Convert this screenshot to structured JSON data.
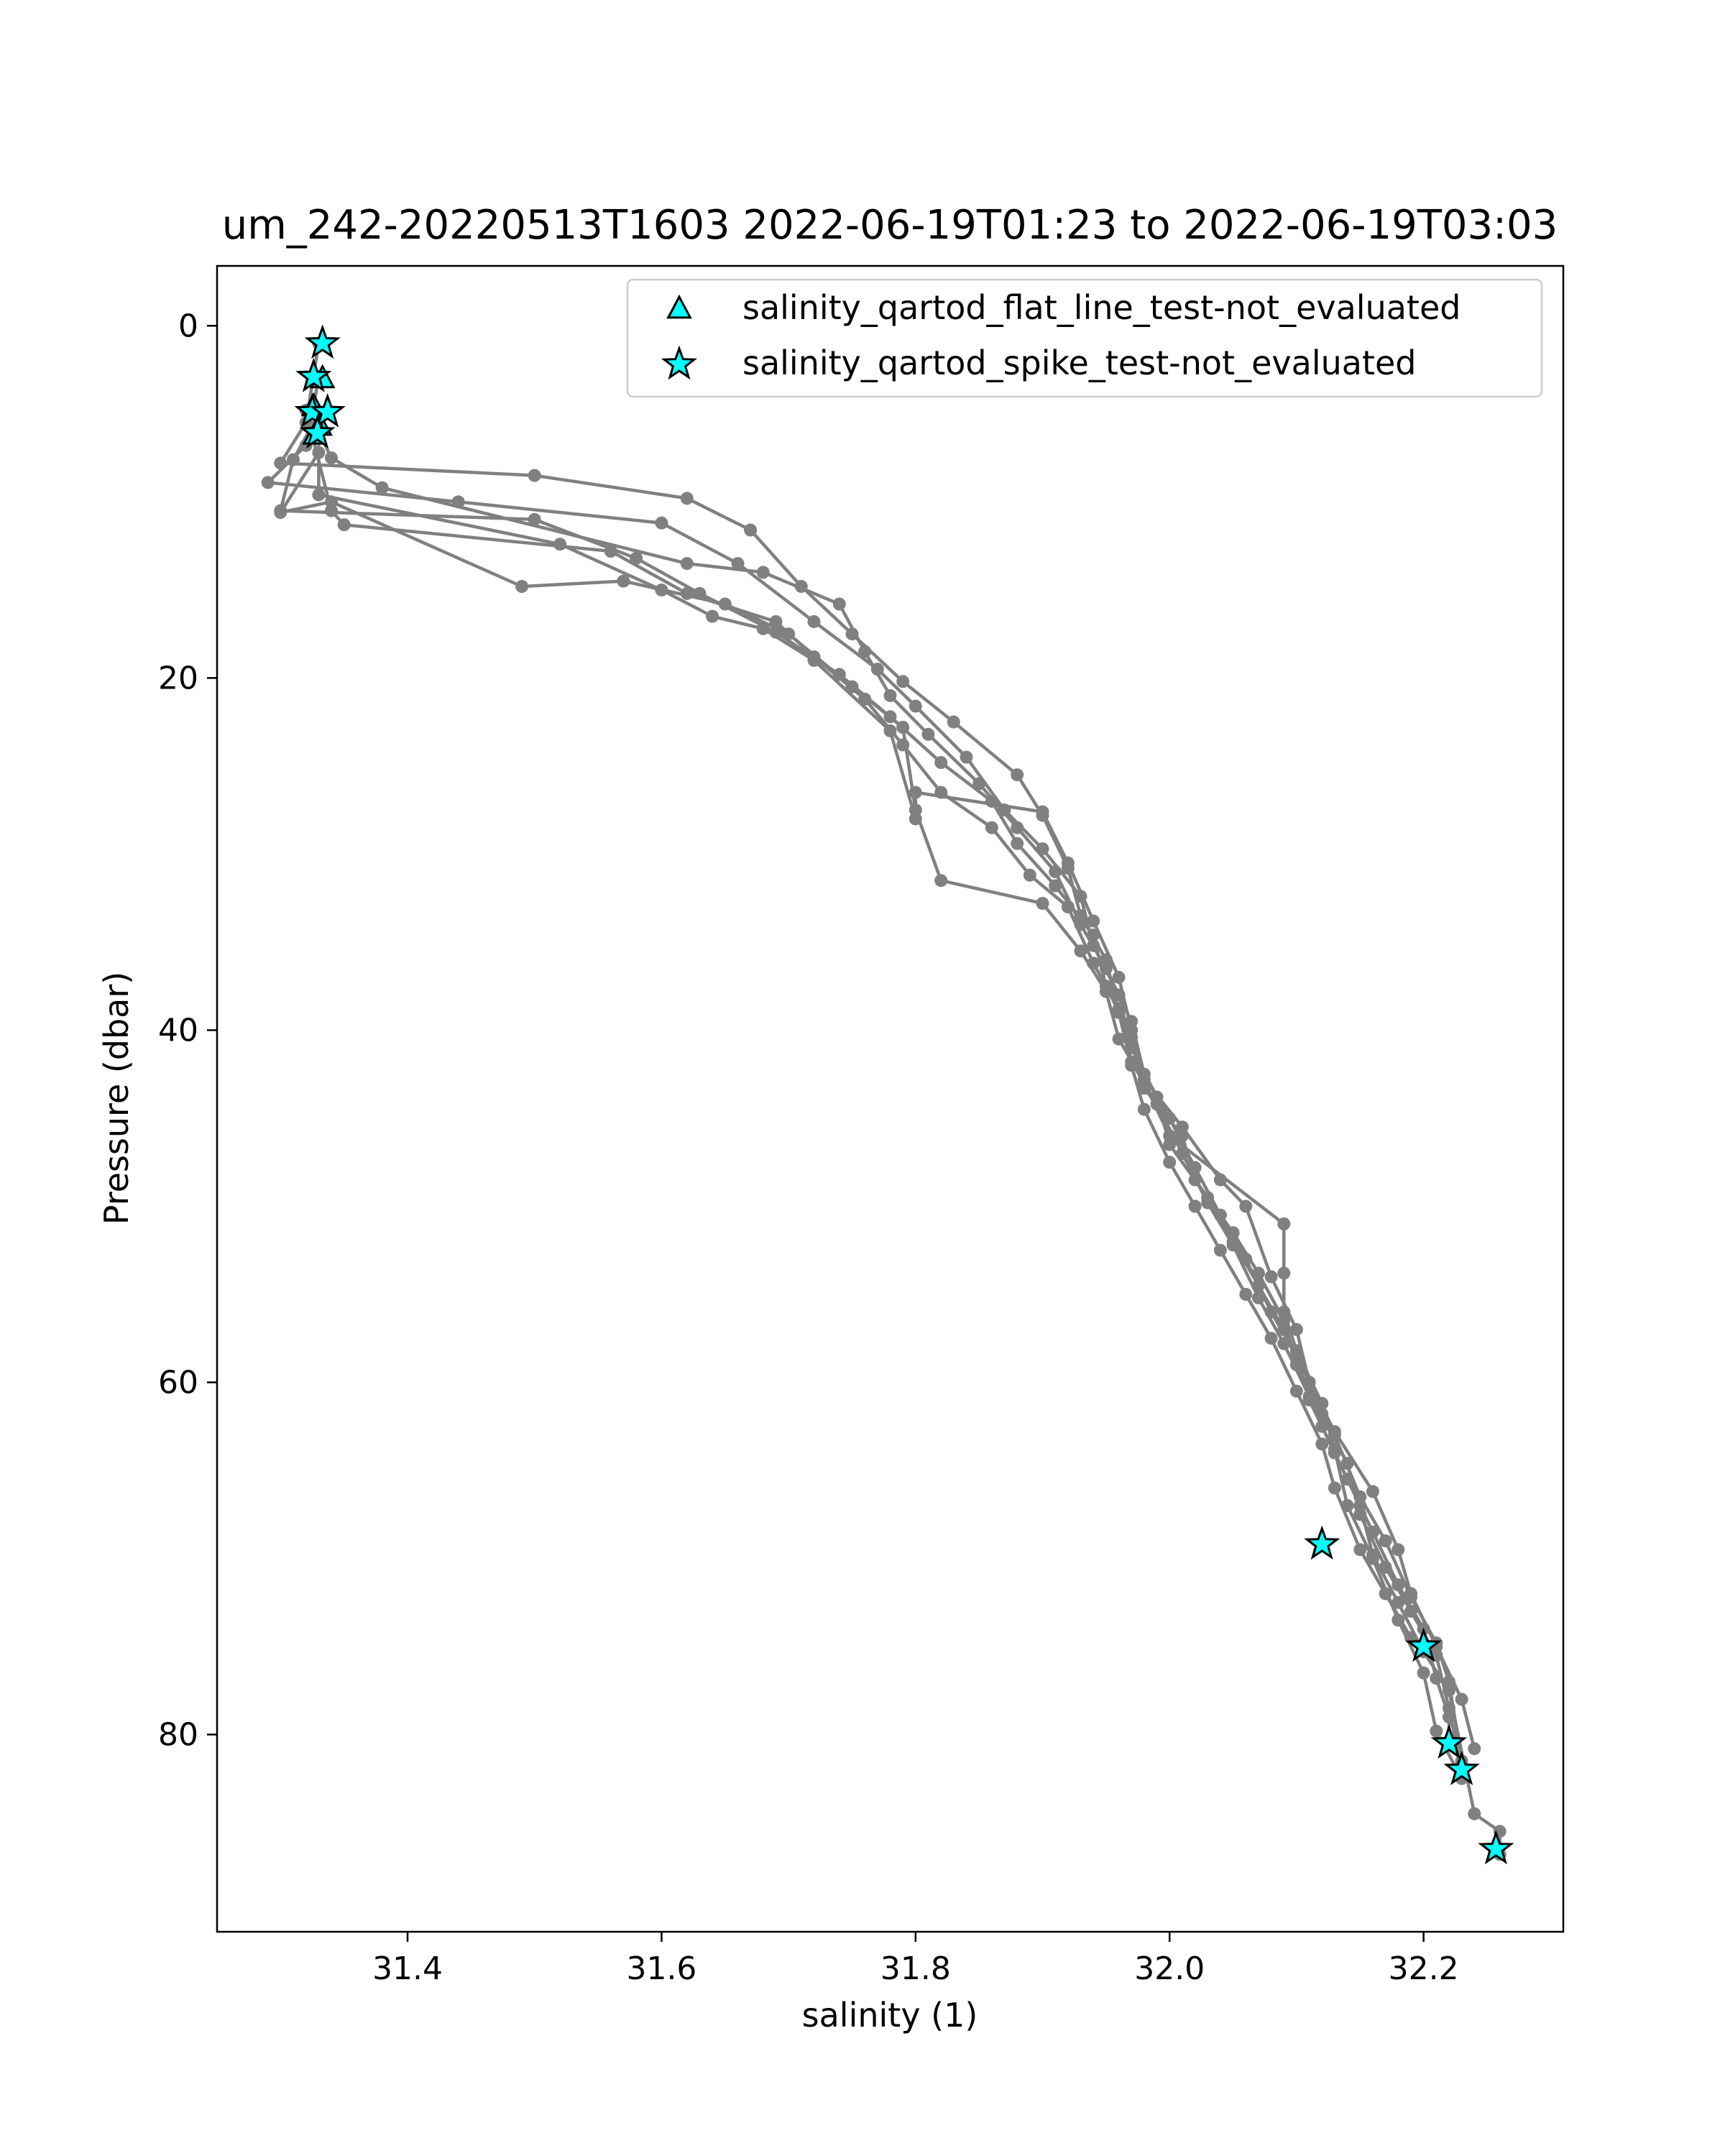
{
  "chart_data": {
    "type": "scatter",
    "title": "um_242-20220513T1603 2022-06-19T01:23 to 2022-06-19T03:03",
    "xlabel": "salinity (1)",
    "ylabel": "Pressure (dbar)",
    "xlim": [
      31.25,
      32.31
    ],
    "ylim": [
      91.2,
      -3.4
    ],
    "y_inverted": true,
    "grid": false,
    "legend_position": "top-right",
    "x_ticks": [
      "31.4",
      "31.6",
      "31.8",
      "32.0",
      "32.2"
    ],
    "x_tick_values": [
      31.4,
      31.6,
      31.8,
      32.0,
      32.2
    ],
    "y_ticks": [
      "0",
      "20",
      "40",
      "60",
      "80"
    ],
    "y_tick_values": [
      0,
      20,
      40,
      60,
      80
    ],
    "colors": {
      "profile": "#808080",
      "marker_fill": "#00ffff",
      "marker_edge": "#000000"
    },
    "series": [
      {
        "style": "line-points",
        "color": "#808080",
        "profiles": [
          [
            [
              31.33,
              1.0
            ],
            [
              31.32,
              5.5
            ],
            [
              31.3,
              7.8
            ],
            [
              31.5,
              8.5
            ],
            [
              31.62,
              9.8
            ],
            [
              31.67,
              11.6
            ],
            [
              31.71,
              14.8
            ],
            [
              31.75,
              17.5
            ],
            [
              31.79,
              20.2
            ],
            [
              31.83,
              22.5
            ],
            [
              31.88,
              25.5
            ],
            [
              31.9,
              27.8
            ],
            [
              31.92,
              30.8
            ],
            [
              31.93,
              33.5
            ],
            [
              31.95,
              36.0
            ],
            [
              31.96,
              39.0
            ],
            [
              31.97,
              42.0
            ],
            [
              31.98,
              44.5
            ],
            [
              32.0,
              47.5
            ],
            [
              32.02,
              50.0
            ],
            [
              32.04,
              52.5
            ],
            [
              32.06,
              55.0
            ],
            [
              32.08,
              57.5
            ],
            [
              32.1,
              60.5
            ],
            [
              32.12,
              63.5
            ],
            [
              32.13,
              66.0
            ],
            [
              32.15,
              69.5
            ],
            [
              32.17,
              72.0
            ],
            [
              32.19,
              74.5
            ],
            [
              32.2,
              75.0
            ]
          ],
          [
            [
              31.33,
              3.0
            ],
            [
              31.32,
              6.8
            ],
            [
              31.29,
              8.9
            ],
            [
              31.44,
              10.0
            ],
            [
              31.6,
              11.2
            ],
            [
              31.66,
              13.5
            ],
            [
              31.72,
              16.8
            ],
            [
              31.77,
              19.5
            ],
            [
              31.8,
              21.6
            ],
            [
              31.84,
              24.5
            ],
            [
              31.87,
              27.5
            ],
            [
              31.9,
              29.7
            ],
            [
              31.93,
              32.4
            ],
            [
              31.94,
              35.2
            ],
            [
              31.96,
              38.0
            ],
            [
              31.97,
              41.0
            ],
            [
              31.99,
              43.8
            ],
            [
              32.0,
              46.5
            ],
            [
              32.03,
              49.5
            ],
            [
              32.05,
              52.0
            ],
            [
              32.07,
              54.5
            ],
            [
              32.09,
              57.0
            ],
            [
              32.11,
              60.0
            ],
            [
              32.12,
              62.5
            ],
            [
              32.14,
              65.5
            ],
            [
              32.16,
              68.5
            ],
            [
              32.18,
              71.5
            ],
            [
              32.2,
              74.0
            ],
            [
              32.21,
              76.8
            ],
            [
              32.22,
              79.0
            ],
            [
              32.22,
              80.5
            ]
          ],
          [
            [
              31.33,
              5.0
            ],
            [
              31.31,
              7.6
            ],
            [
              31.3,
              10.5
            ],
            [
              31.5,
              11.0
            ],
            [
              31.58,
              13.2
            ],
            [
              31.63,
              15.2
            ],
            [
              31.69,
              17.4
            ],
            [
              31.74,
              19.8
            ],
            [
              31.78,
              22.2
            ],
            [
              31.82,
              24.8
            ],
            [
              31.86,
              27.0
            ],
            [
              31.88,
              29.4
            ],
            [
              31.91,
              31.8
            ],
            [
              31.94,
              34.6
            ],
            [
              31.95,
              37.5
            ],
            [
              31.97,
              40.4
            ],
            [
              31.98,
              43.3
            ],
            [
              32.01,
              46.0
            ],
            [
              32.02,
              48.5
            ],
            [
              32.05,
              51.5
            ],
            [
              32.07,
              53.8
            ],
            [
              32.09,
              56.5
            ],
            [
              32.1,
              59.0
            ],
            [
              32.12,
              61.8
            ],
            [
              32.14,
              64.6
            ],
            [
              32.15,
              67.5
            ],
            [
              32.17,
              70.5
            ],
            [
              32.19,
              73.0
            ],
            [
              32.21,
              75.5
            ],
            [
              32.22,
              78.5
            ],
            [
              32.23,
              82.0
            ]
          ],
          [
            [
              31.33,
              6.0
            ],
            [
              31.34,
              7.5
            ],
            [
              31.38,
              9.2
            ],
            [
              31.62,
              13.5
            ],
            [
              31.68,
              14.0
            ],
            [
              31.74,
              15.8
            ],
            [
              31.76,
              18.5
            ],
            [
              31.78,
              21.0
            ],
            [
              31.81,
              23.2
            ],
            [
              31.85,
              26.0
            ],
            [
              31.88,
              28.5
            ],
            [
              31.91,
              31.0
            ],
            [
              31.93,
              34.0
            ],
            [
              31.95,
              36.5
            ],
            [
              31.97,
              39.5
            ],
            [
              31.98,
              42.5
            ],
            [
              32.0,
              45.0
            ],
            [
              32.02,
              47.8
            ],
            [
              32.04,
              50.5
            ],
            [
              32.06,
              53.0
            ],
            [
              32.08,
              56.0
            ],
            [
              32.1,
              58.5
            ],
            [
              32.11,
              61.0
            ],
            [
              32.13,
              64.0
            ],
            [
              32.15,
              67.0
            ],
            [
              32.16,
              69.8
            ],
            [
              32.18,
              72.5
            ],
            [
              32.2,
              75.3
            ],
            [
              32.22,
              77.5
            ],
            [
              32.24,
              84.5
            ],
            [
              32.26,
              85.5
            ],
            [
              32.26,
              86.8
            ]
          ],
          [
            [
              31.32,
              4.8
            ],
            [
              31.34,
              10.5
            ],
            [
              31.35,
              11.3
            ],
            [
              31.56,
              12.8
            ],
            [
              31.62,
              15.2
            ],
            [
              31.69,
              16.8
            ],
            [
              31.72,
              18.8
            ],
            [
              31.76,
              21.2
            ],
            [
              31.79,
              23.8
            ],
            [
              31.82,
              26.5
            ],
            [
              31.86,
              28.5
            ],
            [
              31.89,
              31.2
            ],
            [
              31.92,
              33.0
            ],
            [
              31.94,
              36.2
            ],
            [
              31.96,
              38.8
            ],
            [
              31.97,
              41.8
            ],
            [
              31.99,
              44.2
            ],
            [
              32.01,
              47.0
            ],
            [
              32.03,
              49.8
            ],
            [
              32.05,
              52.2
            ],
            [
              32.07,
              55.2
            ],
            [
              32.09,
              57.8
            ],
            [
              32.11,
              60.8
            ],
            [
              32.13,
              63.0
            ],
            [
              32.15,
              66.5
            ],
            [
              32.17,
              69.0
            ],
            [
              32.19,
              72.2
            ],
            [
              32.21,
              74.8
            ],
            [
              32.22,
              77.0
            ],
            [
              32.23,
              81.5
            ]
          ],
          [
            [
              31.33,
              7.2
            ],
            [
              31.3,
              10.6
            ],
            [
              31.34,
              10.0
            ],
            [
              31.49,
              14.8
            ],
            [
              31.57,
              14.5
            ],
            [
              31.65,
              15.8
            ],
            [
              31.7,
              17.5
            ],
            [
              31.75,
              20.5
            ],
            [
              31.79,
              22.8
            ],
            [
              31.8,
              27.5
            ],
            [
              31.82,
              31.5
            ],
            [
              31.9,
              32.8
            ],
            [
              31.93,
              35.5
            ],
            [
              31.95,
              37.8
            ],
            [
              31.96,
              40.5
            ],
            [
              31.98,
              43.0
            ],
            [
              32.0,
              46.0
            ],
            [
              32.09,
              51.0
            ],
            [
              32.09,
              53.8
            ],
            [
              32.09,
              56.0
            ],
            [
              32.1,
              58.2
            ],
            [
              32.12,
              61.2
            ],
            [
              32.13,
              63.8
            ],
            [
              32.14,
              67.0
            ],
            [
              32.16,
              70.0
            ],
            [
              32.18,
              73.5
            ],
            [
              32.2,
              76.5
            ],
            [
              32.21,
              79.8
            ],
            [
              32.23,
              82.5
            ]
          ],
          [
            [
              31.33,
              5.8
            ],
            [
              31.33,
              9.6
            ],
            [
              31.52,
              12.4
            ],
            [
              31.6,
              15.0
            ],
            [
              31.64,
              16.5
            ],
            [
              31.68,
              17.2
            ],
            [
              31.72,
              19.0
            ],
            [
              31.78,
              23.0
            ],
            [
              31.8,
              28.0
            ],
            [
              31.8,
              26.5
            ],
            [
              31.9,
              27.6
            ],
            [
              31.92,
              30.5
            ],
            [
              31.94,
              33.8
            ],
            [
              31.96,
              37.0
            ],
            [
              31.97,
              40.0
            ],
            [
              31.98,
              42.8
            ],
            [
              32.01,
              45.5
            ],
            [
              32.04,
              48.5
            ],
            [
              32.06,
              50.0
            ],
            [
              32.08,
              54.0
            ],
            [
              32.1,
              57.0
            ],
            [
              32.11,
              60.0
            ],
            [
              32.13,
              62.8
            ],
            [
              32.16,
              66.2
            ],
            [
              32.18,
              69.5
            ],
            [
              32.19,
              72.0
            ],
            [
              32.21,
              75.0
            ],
            [
              32.23,
              78.0
            ],
            [
              32.24,
              80.8
            ]
          ]
        ]
      },
      {
        "name": "salinity_qartod_flat_line_test-not_evaluated",
        "marker": "triangle",
        "color": "#00ffff",
        "points": [
          [
            31.333,
            3.0
          ],
          [
            31.326,
            4.6
          ],
          [
            31.331,
            5.7
          ],
          [
            31.327,
            6.2
          ]
        ]
      },
      {
        "name": "salinity_qartod_spike_test-not_evaluated",
        "marker": "star",
        "color": "#00ffff",
        "points": [
          [
            31.333,
            1.0
          ],
          [
            31.326,
            2.9
          ],
          [
            31.325,
            4.9
          ],
          [
            31.337,
            4.9
          ],
          [
            31.329,
            6.1
          ],
          [
            32.12,
            69.2
          ],
          [
            32.2,
            75.0
          ],
          [
            32.22,
            80.5
          ],
          [
            32.23,
            82.0
          ],
          [
            32.257,
            86.5
          ]
        ]
      }
    ]
  }
}
